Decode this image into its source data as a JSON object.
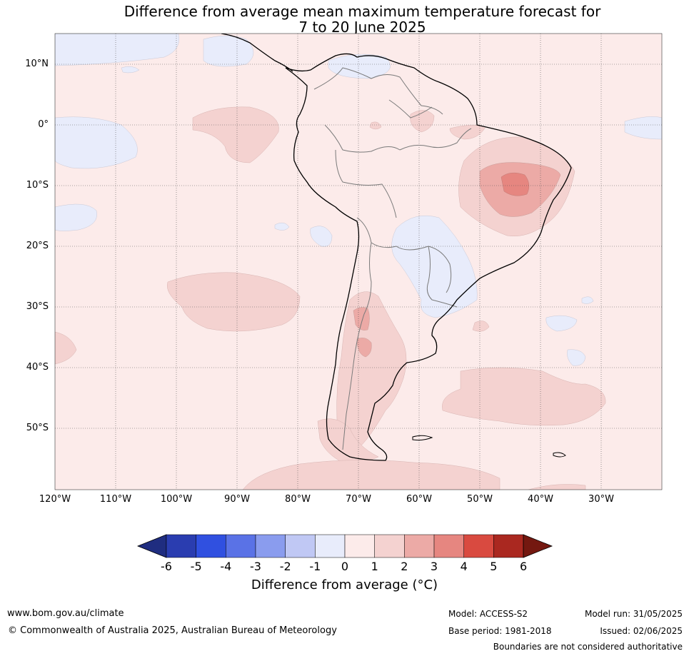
{
  "title": {
    "line1": "Difference from average mean maximum temperature forecast for",
    "line2": "7 to 20 June 2025"
  },
  "map": {
    "lat_labels": [
      "10°N",
      "0°",
      "10°S",
      "20°S",
      "30°S",
      "40°S",
      "50°S"
    ],
    "lon_labels": [
      "120°W",
      "110°W",
      "100°W",
      "90°W",
      "80°W",
      "70°W",
      "60°W",
      "50°W",
      "40°W",
      "30°W"
    ],
    "background_color": "#fcebea"
  },
  "colorbar": {
    "ticks": [
      "-6",
      "-5",
      "-4",
      "-3",
      "-2",
      "-1",
      "0",
      "1",
      "2",
      "3",
      "4",
      "5",
      "6"
    ],
    "colors": [
      "#1f2d80",
      "#2a3db0",
      "#3050e0",
      "#5a72e6",
      "#8a9cee",
      "#c0c8f4",
      "#e8ecfb",
      "#fcebea",
      "#f4d2d0",
      "#ecaaa6",
      "#e68680",
      "#d94a40",
      "#aa2820",
      "#741810"
    ],
    "label": "Difference from average (°C)"
  },
  "footer": {
    "website": "www.bom.gov.au/climate",
    "copyright": "© Commonwealth of Australia 2025, Australian Bureau of Meteorology",
    "model": "Model: ACCESS-S2",
    "base_period": "Base period: 1981-2018",
    "model_run": "Model run: 31/05/2025",
    "issued": "Issued: 02/06/2025",
    "disclaimer": "Boundaries are not considered authoritative"
  }
}
